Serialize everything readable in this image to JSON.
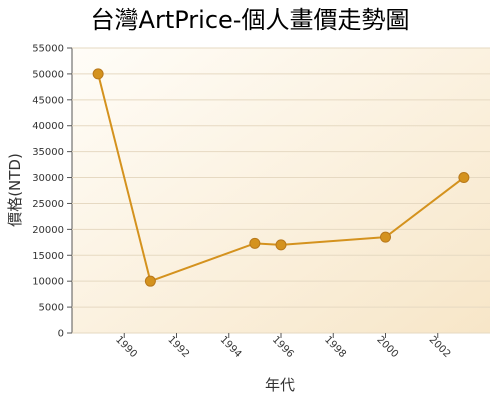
{
  "chart_data": {
    "type": "line",
    "title": "台灣ArtPrice-個人畫價走勢圖",
    "x_label": "年代",
    "y_label": "價格(NTD)",
    "x": [
      1989,
      1991,
      1995,
      1996,
      2000,
      2003
    ],
    "values": [
      50000,
      10000,
      17300,
      17000,
      18500,
      30000
    ],
    "color": "#d4921e",
    "xlim": [
      1988,
      2004
    ],
    "xticks": [
      1990,
      1992,
      1994,
      1996,
      1998,
      2000,
      2002
    ],
    "ylim": [
      0,
      55000
    ],
    "yticks": [
      0,
      5000,
      10000,
      15000,
      20000,
      25000,
      30000,
      35000,
      40000,
      45000,
      50000,
      55000
    ],
    "grid": true
  }
}
